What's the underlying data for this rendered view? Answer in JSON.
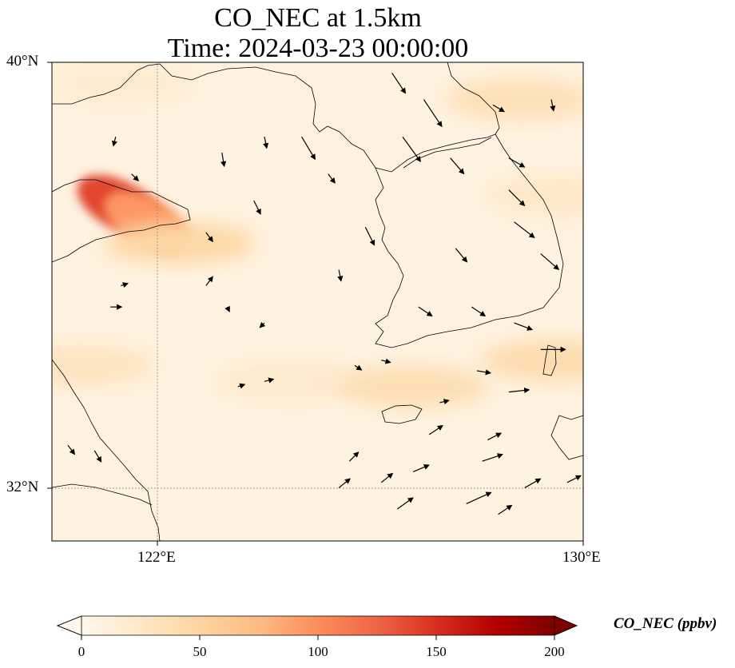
{
  "title": {
    "line1": "CO_NEC at 1.5km",
    "line2": "Time: 2024-03-23 00:00:00"
  },
  "map": {
    "variable": "CO_NEC",
    "level": "1.5km",
    "extent": {
      "lon_min": 120,
      "lon_max": 130,
      "lat_min": 31,
      "lat_max": 40
    },
    "gridlines": {
      "lon": [
        122
      ],
      "lat": [
        32
      ],
      "style": "dotted"
    },
    "tick_labels": {
      "lat": [
        {
          "value": 40,
          "label": "40°N"
        },
        {
          "value": 32,
          "label": "32°N"
        }
      ],
      "lon": [
        {
          "value": 122,
          "label": "122°E"
        },
        {
          "value": 130,
          "label": "130°E"
        }
      ]
    },
    "colors": {
      "background": "#fef3e5",
      "coast": "#000000",
      "grid": "#808080"
    }
  },
  "chart_data": {
    "type": "heatmap",
    "title": "CO_NEC at 1.5km\nTime: 2024-03-23 00:00:00",
    "xlabel": "",
    "ylabel": "",
    "xlim": [
      120,
      130
    ],
    "ylim": [
      31,
      40
    ],
    "colormap": "OrRd",
    "colorbar": {
      "label": "CO_NEC (ppbv)",
      "range": [
        0,
        200
      ],
      "ticks": [
        0,
        50,
        100,
        150,
        200
      ],
      "extend": "both"
    },
    "background_value": 8,
    "features": [
      {
        "name": "plume-peak",
        "lon": 121.3,
        "lat": 37.3,
        "value": 140
      },
      {
        "name": "plume-core",
        "lon": 121.8,
        "lat": 37.0,
        "value": 95
      },
      {
        "name": "plume-tail",
        "lon": 122.4,
        "lat": 36.6,
        "value": 45
      },
      {
        "name": "band-west",
        "lon": 120.5,
        "lat": 34.3,
        "value": 30
      },
      {
        "name": "band-central",
        "lon": 124.5,
        "lat": 34.0,
        "value": 22
      },
      {
        "name": "band-south-korea",
        "lon": 126.8,
        "lat": 33.9,
        "value": 38
      },
      {
        "name": "band-east",
        "lon": 129.5,
        "lat": 34.4,
        "value": 40
      },
      {
        "name": "northeast-korea",
        "lon": 128.8,
        "lat": 39.3,
        "value": 35
      },
      {
        "name": "east-korea-coast",
        "lon": 129.6,
        "lat": 37.5,
        "value": 25
      },
      {
        "name": "northwest-coast",
        "lon": 121.3,
        "lat": 39.6,
        "value": 18
      }
    ],
    "wind_vectors": [
      {
        "lon": 126.4,
        "lat": 39.8,
        "u": 0.6,
        "v": -0.9
      },
      {
        "lon": 127.0,
        "lat": 39.3,
        "u": 0.8,
        "v": -1.2
      },
      {
        "lon": 128.3,
        "lat": 39.2,
        "u": 0.5,
        "v": -0.3
      },
      {
        "lon": 129.4,
        "lat": 39.3,
        "u": 0.1,
        "v": -0.5
      },
      {
        "lon": 124.7,
        "lat": 38.6,
        "u": 0.6,
        "v": -1.0
      },
      {
        "lon": 126.6,
        "lat": 38.6,
        "u": 0.8,
        "v": -1.1
      },
      {
        "lon": 128.6,
        "lat": 38.2,
        "u": 0.7,
        "v": -0.4
      },
      {
        "lon": 127.5,
        "lat": 38.2,
        "u": 0.6,
        "v": -0.7
      },
      {
        "lon": 125.2,
        "lat": 37.9,
        "u": 0.3,
        "v": -0.4
      },
      {
        "lon": 128.6,
        "lat": 37.6,
        "u": 0.7,
        "v": -0.7
      },
      {
        "lon": 128.7,
        "lat": 37.0,
        "u": 0.9,
        "v": -0.7
      },
      {
        "lon": 129.2,
        "lat": 36.4,
        "u": 0.8,
        "v": -0.7
      },
      {
        "lon": 127.6,
        "lat": 36.5,
        "u": 0.5,
        "v": -0.6
      },
      {
        "lon": 125.9,
        "lat": 36.9,
        "u": 0.4,
        "v": -0.8
      },
      {
        "lon": 124.0,
        "lat": 38.6,
        "u": 0.1,
        "v": -0.5
      },
      {
        "lon": 123.2,
        "lat": 38.3,
        "u": 0.1,
        "v": -0.6
      },
      {
        "lon": 121.2,
        "lat": 38.6,
        "u": -0.1,
        "v": -0.4
      },
      {
        "lon": 121.5,
        "lat": 37.9,
        "u": 0.3,
        "v": -0.3
      },
      {
        "lon": 123.8,
        "lat": 37.4,
        "u": 0.3,
        "v": -0.6
      },
      {
        "lon": 122.9,
        "lat": 36.8,
        "u": 0.3,
        "v": -0.4
      },
      {
        "lon": 125.4,
        "lat": 36.1,
        "u": 0.1,
        "v": -0.5
      },
      {
        "lon": 126.9,
        "lat": 35.4,
        "u": 0.6,
        "v": -0.4
      },
      {
        "lon": 127.9,
        "lat": 35.4,
        "u": 0.6,
        "v": -0.4
      },
      {
        "lon": 128.7,
        "lat": 35.1,
        "u": 0.8,
        "v": -0.3
      },
      {
        "lon": 129.2,
        "lat": 34.6,
        "u": 1.1,
        "v": 0.0
      },
      {
        "lon": 128.6,
        "lat": 33.8,
        "u": 0.9,
        "v": 0.1
      },
      {
        "lon": 126.2,
        "lat": 34.4,
        "u": 0.4,
        "v": -0.1
      },
      {
        "lon": 124.0,
        "lat": 34.0,
        "u": 0.4,
        "v": 0.1
      },
      {
        "lon": 123.5,
        "lat": 33.9,
        "u": 0.3,
        "v": 0.1
      },
      {
        "lon": 127.3,
        "lat": 33.6,
        "u": 0.4,
        "v": 0.1
      },
      {
        "lon": 128.2,
        "lat": 32.9,
        "u": 0.6,
        "v": 0.3
      },
      {
        "lon": 127.1,
        "lat": 33.0,
        "u": 0.6,
        "v": 0.4
      },
      {
        "lon": 125.6,
        "lat": 32.5,
        "u": 0.4,
        "v": 0.4
      },
      {
        "lon": 126.8,
        "lat": 32.3,
        "u": 0.7,
        "v": 0.3
      },
      {
        "lon": 128.1,
        "lat": 32.5,
        "u": 0.9,
        "v": 0.3
      },
      {
        "lon": 127.8,
        "lat": 31.7,
        "u": 1.1,
        "v": 0.5
      },
      {
        "lon": 126.5,
        "lat": 31.6,
        "u": 0.7,
        "v": 0.5
      },
      {
        "lon": 125.4,
        "lat": 32.0,
        "u": 0.5,
        "v": 0.4
      },
      {
        "lon": 126.2,
        "lat": 32.1,
        "u": 0.5,
        "v": 0.4
      },
      {
        "lon": 128.4,
        "lat": 31.5,
        "u": 0.6,
        "v": 0.4
      },
      {
        "lon": 129.7,
        "lat": 32.1,
        "u": 0.6,
        "v": 0.3
      },
      {
        "lon": 128.9,
        "lat": 32.0,
        "u": 0.7,
        "v": 0.4
      },
      {
        "lon": 128.0,
        "lat": 34.2,
        "u": 0.6,
        "v": -0.1
      },
      {
        "lon": 121.3,
        "lat": 35.8,
        "u": 0.3,
        "v": 0.1
      },
      {
        "lon": 122.9,
        "lat": 35.8,
        "u": 0.3,
        "v": 0.4
      },
      {
        "lon": 123.3,
        "lat": 35.4,
        "u": 0.1,
        "v": -0.2
      },
      {
        "lon": 121.1,
        "lat": 35.4,
        "u": 0.5,
        "v": 0.0
      },
      {
        "lon": 120.8,
        "lat": 32.7,
        "u": 0.3,
        "v": -0.5
      },
      {
        "lon": 124.0,
        "lat": 35.1,
        "u": -0.2,
        "v": -0.2
      },
      {
        "lon": 120.3,
        "lat": 32.8,
        "u": 0.3,
        "v": -0.4
      },
      {
        "lon": 125.7,
        "lat": 34.3,
        "u": 0.3,
        "v": -0.2
      }
    ]
  }
}
